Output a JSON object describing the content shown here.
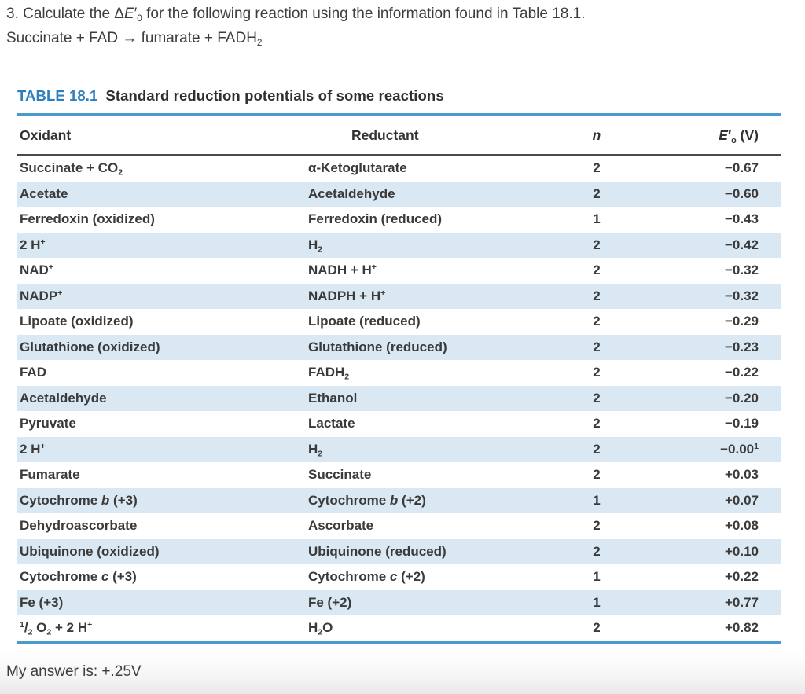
{
  "question": {
    "line1": "3. Calculate the Δ*E*′~0~ for the following reaction using the information found in Table 18.1.",
    "line2": "Succinate + FAD → fumarate + FADH~2~"
  },
  "table": {
    "label": "TABLE 18.1",
    "title": "Standard reduction potentials of some reactions",
    "columns": {
      "oxidant": "Oxidant",
      "reductant": "Reductant",
      "n": "*n*",
      "e0": "*E*′~o~ (V)"
    },
    "rows": [
      {
        "oxidant": "Succinate + CO~2~",
        "reductant": "α-Ketoglutarate",
        "n": "2",
        "e": "−0.67"
      },
      {
        "oxidant": "Acetate",
        "reductant": "Acetaldehyde",
        "n": "2",
        "e": "−0.60"
      },
      {
        "oxidant": "Ferredoxin (oxidized)",
        "reductant": "Ferredoxin (reduced)",
        "n": "1",
        "e": "−0.43"
      },
      {
        "oxidant": "2 H^+^",
        "reductant": "H~2~",
        "n": "2",
        "e": "−0.42"
      },
      {
        "oxidant": "NAD^+^",
        "reductant": "NADH + H^+^",
        "n": "2",
        "e": "−0.32"
      },
      {
        "oxidant": "NADP^+^",
        "reductant": "NADPH + H^+^",
        "n": "2",
        "e": "−0.32"
      },
      {
        "oxidant": "Lipoate (oxidized)",
        "reductant": "Lipoate (reduced)",
        "n": "2",
        "e": "−0.29"
      },
      {
        "oxidant": "Glutathione (oxidized)",
        "reductant": "Glutathione (reduced)",
        "n": "2",
        "e": "−0.23"
      },
      {
        "oxidant": "FAD",
        "reductant": "FADH~2~",
        "n": "2",
        "e": "−0.22"
      },
      {
        "oxidant": "Acetaldehyde",
        "reductant": "Ethanol",
        "n": "2",
        "e": "−0.20"
      },
      {
        "oxidant": "Pyruvate",
        "reductant": "Lactate",
        "n": "2",
        "e": "−0.19"
      },
      {
        "oxidant": "2 H^+^",
        "reductant": "H~2~",
        "n": "2",
        "e": "−0.00^1^"
      },
      {
        "oxidant": "Fumarate",
        "reductant": "Succinate",
        "n": "2",
        "e": "+0.03"
      },
      {
        "oxidant": "Cytochrome *b* (+3)",
        "reductant": "Cytochrome *b* (+2)",
        "n": "1",
        "e": "+0.07"
      },
      {
        "oxidant": "Dehydroascorbate",
        "reductant": "Ascorbate",
        "n": "2",
        "e": "+0.08"
      },
      {
        "oxidant": "Ubiquinone (oxidized)",
        "reductant": "Ubiquinone (reduced)",
        "n": "2",
        "e": "+0.10"
      },
      {
        "oxidant": "Cytochrome *c* (+3)",
        "reductant": "Cytochrome *c* (+2)",
        "n": "1",
        "e": "+0.22"
      },
      {
        "oxidant": "Fe (+3)",
        "reductant": "Fe (+2)",
        "n": "1",
        "e": "+0.77"
      },
      {
        "oxidant": "^1^/~2~ O~2~ + 2 H^+^",
        "reductant": "H~2~O",
        "n": "2",
        "e": "+0.82"
      }
    ]
  },
  "answer": "My answer is: +.25V",
  "colors": {
    "accent_blue_label": "#2d7fbd",
    "rule_blue": "#4b9ac9",
    "row_stripe": "#d9e8f3",
    "header_rule": "#4a4a4a",
    "text": "#3a3a3a"
  }
}
